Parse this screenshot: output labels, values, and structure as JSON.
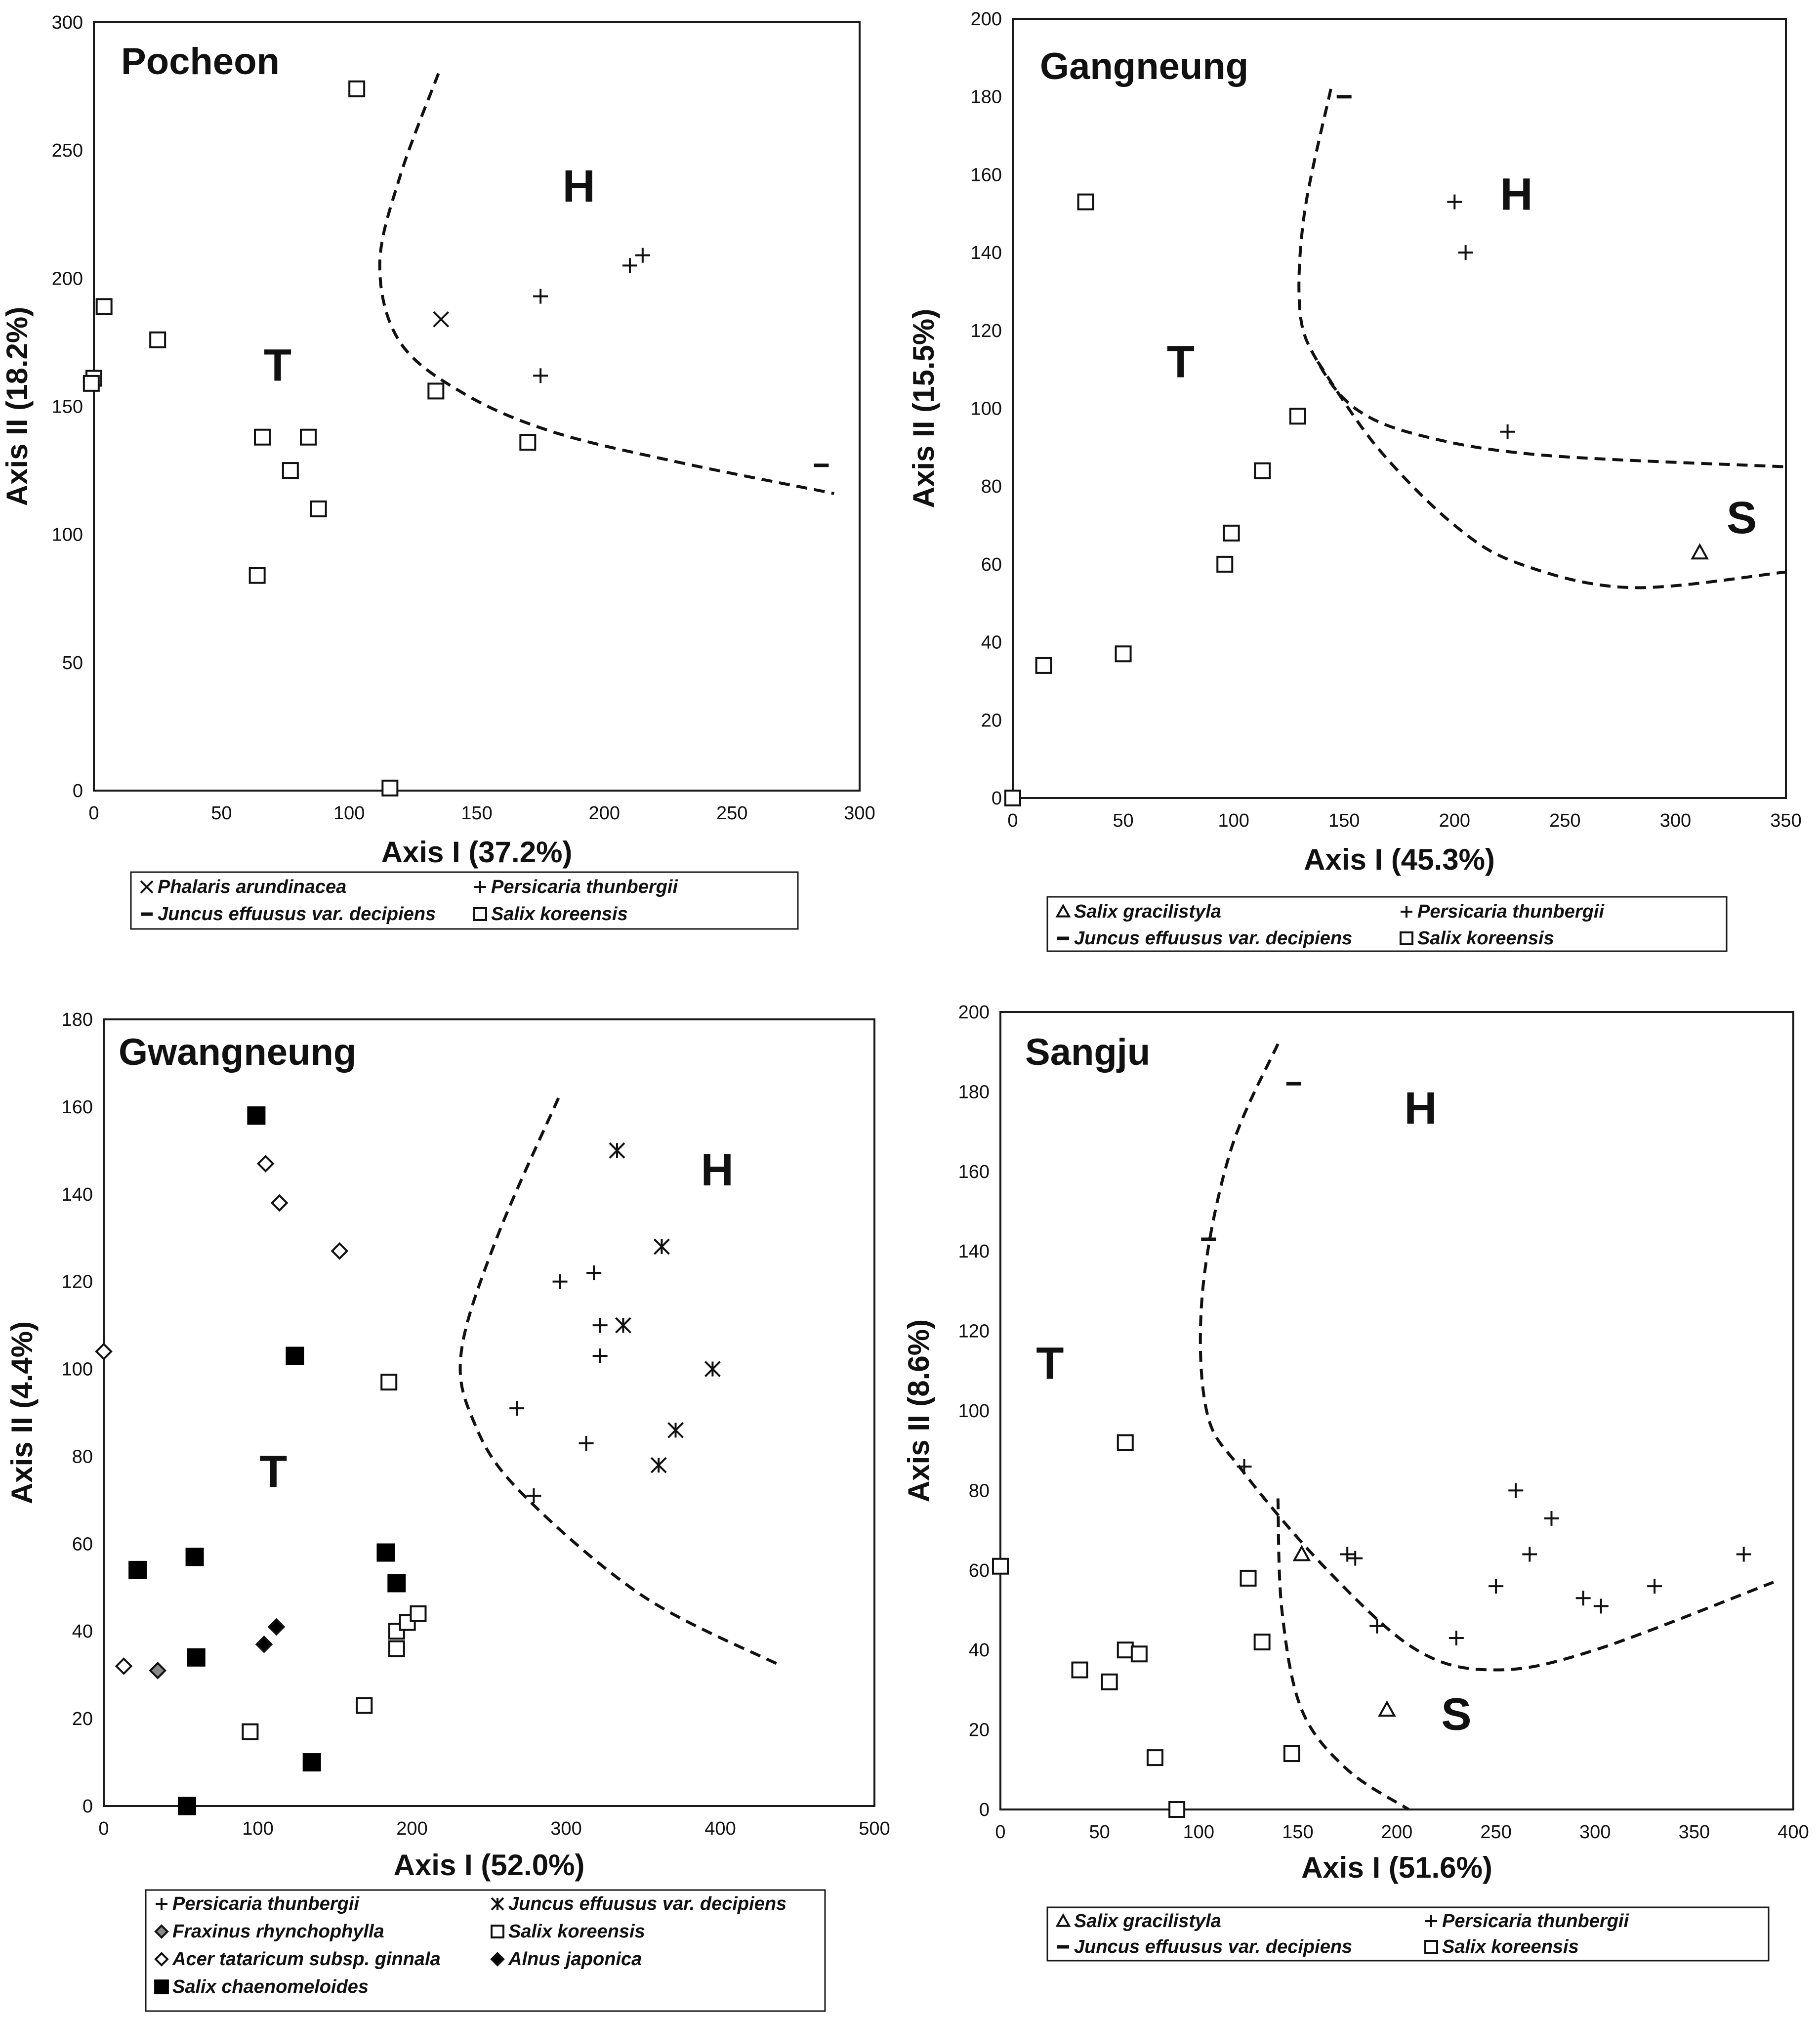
{
  "chart_data": [
    {
      "type": "scatter",
      "title": "Pocheon",
      "xlabel": "Axis I (37.2%)",
      "ylabel": "Axis II (18.2%)",
      "xlim": [
        0,
        300
      ],
      "ylim": [
        0,
        300
      ],
      "xticks": [
        0,
        50,
        100,
        150,
        200,
        250,
        300
      ],
      "yticks": [
        0,
        50,
        100,
        150,
        200,
        250,
        300
      ],
      "zones": [
        {
          "label": "H",
          "x": 190,
          "y": 230
        },
        {
          "label": "T",
          "x": 72,
          "y": 160
        }
      ],
      "boundaries": [
        [
          [
            135,
            280
          ],
          [
            120,
            240
          ],
          [
            112,
            205
          ],
          [
            120,
            175
          ],
          [
            145,
            155
          ],
          [
            180,
            140
          ],
          [
            230,
            128
          ],
          [
            290,
            116
          ]
        ]
      ],
      "series": [
        {
          "name": "Phalaris arundinacea",
          "marker": "x",
          "points": [
            [
              136,
              184
            ]
          ]
        },
        {
          "name": "Persicaria thunbergii",
          "marker": "plus",
          "points": [
            [
              175,
              193
            ],
            [
              175,
              162
            ],
            [
              210,
              205
            ],
            [
              215,
              209
            ]
          ]
        },
        {
          "name": "Juncus effuusus var. decipiens",
          "marker": "dash",
          "points": [
            [
              285,
              127
            ]
          ]
        },
        {
          "name": "Salix koreensis",
          "marker": "square",
          "points": [
            [
              103,
              274
            ],
            [
              4,
              189
            ],
            [
              25,
              176
            ],
            [
              0,
              161
            ],
            [
              -1,
              159
            ],
            [
              66,
              138
            ],
            [
              84,
              138
            ],
            [
              77,
              125
            ],
            [
              88,
              110
            ],
            [
              64,
              84
            ],
            [
              134,
              156
            ],
            [
              170,
              136
            ],
            [
              116,
              1
            ]
          ]
        }
      ],
      "legend": [
        "Phalaris arundinacea",
        "Persicaria thunbergii",
        "Juncus effuusus var. decipiens",
        "Salix koreensis"
      ]
    },
    {
      "type": "scatter",
      "title": "Gangneung",
      "xlabel": "Axis I (45.3%)",
      "ylabel": "Axis II (15.5%)",
      "xlim": [
        0,
        350
      ],
      "ylim": [
        0,
        200
      ],
      "xticks": [
        0,
        50,
        100,
        150,
        200,
        250,
        300,
        350
      ],
      "yticks": [
        0,
        20,
        40,
        60,
        80,
        100,
        120,
        140,
        160,
        180,
        200
      ],
      "zones": [
        {
          "label": "H",
          "x": 228,
          "y": 151
        },
        {
          "label": "T",
          "x": 76,
          "y": 108
        },
        {
          "label": "S",
          "x": 330,
          "y": 68
        }
      ],
      "boundaries": [
        [
          [
            144,
            182
          ],
          [
            132,
            150
          ],
          [
            130,
            125
          ],
          [
            138,
            112
          ],
          [
            155,
            100
          ],
          [
            185,
            93
          ],
          [
            240,
            88
          ],
          [
            350,
            85
          ]
        ],
        [
          [
            138,
            112
          ],
          [
            165,
            90
          ],
          [
            200,
            70
          ],
          [
            230,
            60
          ],
          [
            280,
            54
          ],
          [
            350,
            58
          ]
        ]
      ],
      "series": [
        {
          "name": "Salix gracilistyla",
          "marker": "triangle",
          "points": [
            [
              311,
              63
            ]
          ]
        },
        {
          "name": "Persicaria thunbergii",
          "marker": "plus",
          "points": [
            [
              200,
              153
            ],
            [
              205,
              140
            ],
            [
              224,
              94
            ]
          ]
        },
        {
          "name": "Juncus effuusus var. decipiens",
          "marker": "dash",
          "points": [
            [
              150,
              180
            ]
          ]
        },
        {
          "name": "Salix koreensis",
          "marker": "square",
          "points": [
            [
              33,
              153
            ],
            [
              14,
              34
            ],
            [
              50,
              37
            ],
            [
              96,
              60
            ],
            [
              99,
              68
            ],
            [
              113,
              84
            ],
            [
              129,
              98
            ],
            [
              0,
              0
            ]
          ]
        }
      ],
      "legend": [
        "Salix gracilistyla",
        "Persicaria thunbergii",
        "Juncus effuusus var. decipiens",
        "Salix koreensis"
      ]
    },
    {
      "type": "scatter",
      "title": "Gwangneung",
      "xlabel": "Axis I (52.0%)",
      "ylabel": "Axis II (4.4%)",
      "xlim": [
        0,
        500
      ],
      "ylim": [
        0,
        180
      ],
      "xticks": [
        0,
        100,
        200,
        300,
        400,
        500
      ],
      "yticks": [
        0,
        20,
        40,
        60,
        80,
        100,
        120,
        140,
        160,
        180
      ],
      "zones": [
        {
          "label": "H",
          "x": 398,
          "y": 142
        },
        {
          "label": "T",
          "x": 110,
          "y": 73
        }
      ],
      "boundaries": [
        [
          [
            295,
            162
          ],
          [
            255,
            130
          ],
          [
            232,
            104
          ],
          [
            240,
            88
          ],
          [
            270,
            72
          ],
          [
            350,
            48
          ],
          [
            440,
            32
          ]
        ]
      ],
      "series": [
        {
          "name": "Persicaria thunbergii",
          "marker": "plus",
          "points": [
            [
              296,
              120
            ],
            [
              318,
              122
            ],
            [
              322,
              110
            ],
            [
              322,
              103
            ],
            [
              268,
              91
            ],
            [
              313,
              83
            ],
            [
              279,
              71
            ]
          ]
        },
        {
          "name": "Juncus effuusus var. decipiens",
          "marker": "asterisk",
          "points": [
            [
              333,
              150
            ],
            [
              362,
              128
            ],
            [
              337,
              110
            ],
            [
              395,
              100
            ],
            [
              371,
              86
            ],
            [
              360,
              78
            ]
          ]
        },
        {
          "name": "Fraxinus rhynchophylla",
          "marker": "diamond-gray",
          "points": [
            [
              35,
              31
            ]
          ]
        },
        {
          "name": "Salix koreensis",
          "marker": "square",
          "points": [
            [
              185,
              97
            ],
            [
              190,
              40
            ],
            [
              197,
              42
            ],
            [
              204,
              44
            ],
            [
              190,
              36
            ],
            [
              169,
              23
            ],
            [
              95,
              17
            ]
          ]
        },
        {
          "name": "Acer tataricum subsp. ginnala",
          "marker": "diamond-open",
          "points": [
            [
              105,
              147
            ],
            [
              114,
              138
            ],
            [
              153,
              127
            ],
            [
              0,
              104
            ],
            [
              13,
              32
            ]
          ]
        },
        {
          "name": "Alnus japonica",
          "marker": "diamond-filled",
          "points": [
            [
              112,
              41
            ],
            [
              104,
              37
            ]
          ]
        },
        {
          "name": "Salix chaenomeloides",
          "marker": "square-filled",
          "points": [
            [
              99,
              158
            ],
            [
              124,
              103
            ],
            [
              22,
              54
            ],
            [
              59,
              57
            ],
            [
              183,
              58
            ],
            [
              190,
              51
            ],
            [
              60,
              34
            ],
            [
              135,
              10
            ],
            [
              54,
              0
            ]
          ]
        }
      ],
      "legend": [
        "Persicaria thunbergii",
        "Juncus effuusus var. decipiens",
        "Fraxinus rhynchophylla",
        "Salix koreensis",
        "Acer tataricum subsp. ginnala",
        "Alnus japonica",
        "Salix chaenomeloides"
      ]
    },
    {
      "type": "scatter",
      "title": "Sangju",
      "xlabel": "Axis I (51.6%)",
      "ylabel": "Axis II (8.6%)",
      "xlim": [
        0,
        400
      ],
      "ylim": [
        0,
        200
      ],
      "xticks": [
        0,
        50,
        100,
        150,
        200,
        250,
        300,
        350,
        400
      ],
      "yticks": [
        0,
        20,
        40,
        60,
        80,
        100,
        120,
        140,
        160,
        180,
        200
      ],
      "zones": [
        {
          "label": "H",
          "x": 212,
          "y": 172
        },
        {
          "label": "T",
          "x": 25,
          "y": 108
        },
        {
          "label": "S",
          "x": 230,
          "y": 20
        }
      ],
      "boundaries": [
        [
          [
            140,
            192
          ],
          [
            116,
            165
          ],
          [
            102,
            130
          ],
          [
            104,
            100
          ],
          [
            122,
            85
          ],
          [
            165,
            60
          ],
          [
            210,
            40
          ],
          [
            250,
            35
          ],
          [
            300,
            40
          ],
          [
            390,
            57
          ]
        ],
        [
          [
            140,
            78
          ],
          [
            142,
            50
          ],
          [
            152,
            25
          ],
          [
            175,
            10
          ],
          [
            206,
            0
          ]
        ]
      ],
      "series": [
        {
          "name": "Salix gracilistyla",
          "marker": "triangle",
          "points": [
            [
              152,
              64
            ],
            [
              195,
              25
            ]
          ]
        },
        {
          "name": "Persicaria thunbergii",
          "marker": "plus",
          "points": [
            [
              123,
              86
            ],
            [
              175,
              64
            ],
            [
              179,
              63
            ],
            [
              190,
              46
            ],
            [
              230,
              43
            ],
            [
              250,
              56
            ],
            [
              260,
              80
            ],
            [
              267,
              64
            ],
            [
              278,
              73
            ],
            [
              294,
              53
            ],
            [
              303,
              51
            ],
            [
              330,
              56
            ],
            [
              375,
              64
            ]
          ]
        },
        {
          "name": "Juncus effuusus var. decipiens",
          "marker": "dash",
          "points": [
            [
              148,
              182
            ],
            [
              105,
              143
            ]
          ]
        },
        {
          "name": "Salix koreensis",
          "marker": "square",
          "points": [
            [
              63,
              92
            ],
            [
              0,
              61
            ],
            [
              125,
              58
            ],
            [
              132,
              42
            ],
            [
              63,
              40
            ],
            [
              70,
              39
            ],
            [
              40,
              35
            ],
            [
              55,
              32
            ],
            [
              78,
              13
            ],
            [
              147,
              14
            ],
            [
              89,
              0
            ]
          ]
        }
      ],
      "legend": [
        "Salix gracilistyla",
        "Persicaria thunbergii",
        "Juncus effuusus var. decipiens",
        "Salix koreensis"
      ]
    }
  ]
}
